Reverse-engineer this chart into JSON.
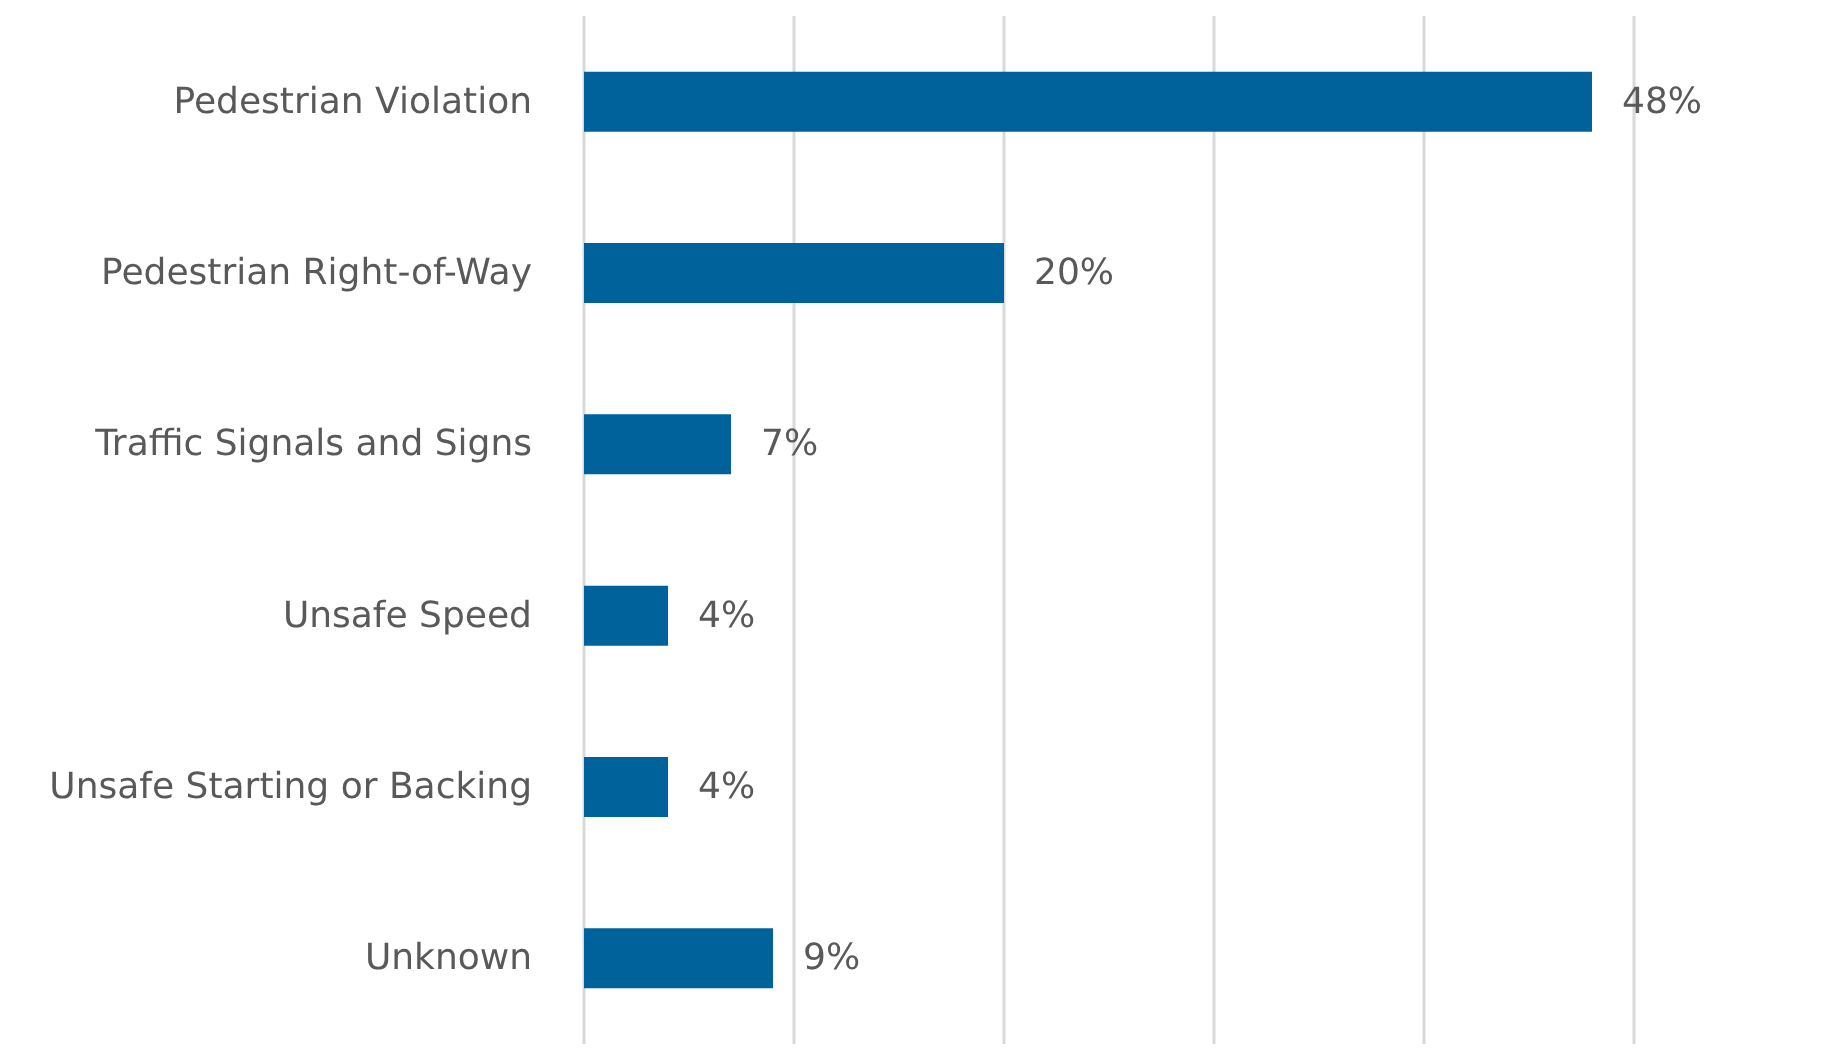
{
  "chart_data": {
    "type": "bar",
    "orientation": "horizontal",
    "categories": [
      "Pedestrian Violation",
      "Pedestrian Right-of-Way",
      "Traffic Signals and Signs",
      "Unsafe Speed",
      "Unsafe Starting or Backing",
      "Unknown"
    ],
    "values": [
      48,
      20,
      7,
      4,
      4,
      9
    ],
    "value_labels": [
      "48%",
      "20%",
      "7%",
      "4%",
      "4%",
      "9%"
    ],
    "color": "#00629b",
    "xlim": [
      0,
      50
    ],
    "xticks": [
      {
        "value": 0,
        "label": null
      },
      {
        "value": 10,
        "label": null
      },
      {
        "value": 20,
        "label": null
      },
      {
        "value": 30,
        "label": null
      },
      {
        "value": 40,
        "label": null
      },
      {
        "value": 50,
        "label": null
      }
    ],
    "grid": "x",
    "tick_labels": "y"
  }
}
